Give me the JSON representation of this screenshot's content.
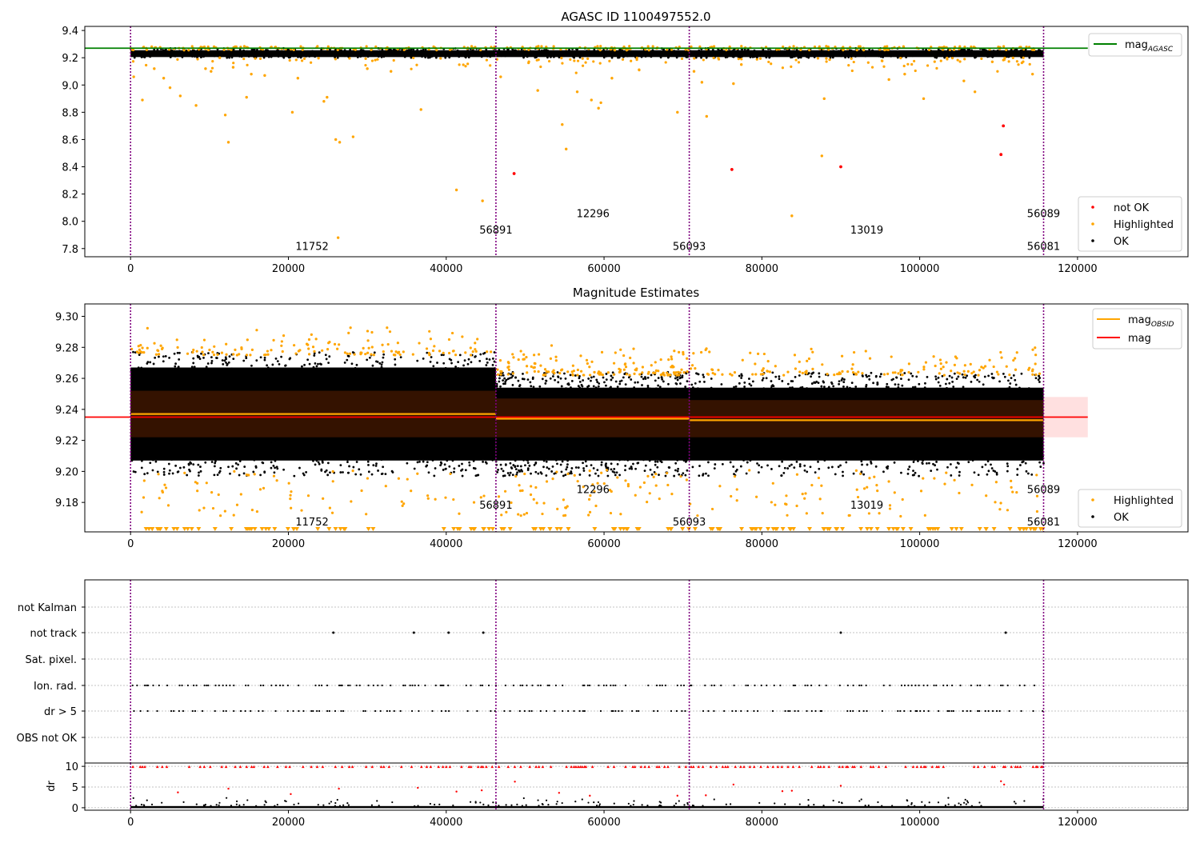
{
  "chart_data": [
    {
      "type": "scatter",
      "title": "AGASC ID 1100497552.0",
      "xlim": [
        -5800,
        134000
      ],
      "ylim": [
        7.74,
        9.43
      ],
      "xticks": [
        0,
        20000,
        40000,
        60000,
        80000,
        100000,
        120000
      ],
      "xtick_labels": [
        "0",
        "20000",
        "40000",
        "60000",
        "80000",
        "100000",
        "120000"
      ],
      "yticks": [
        7.8,
        8.0,
        8.2,
        8.4,
        8.6,
        8.8,
        9.0,
        9.2,
        9.4
      ],
      "ytick_labels": [
        "7.8",
        "8.0",
        "8.2",
        "8.4",
        "8.6",
        "8.8",
        "9.0",
        "9.2",
        "9.4"
      ],
      "obs_boundaries": [
        0,
        46300,
        70800,
        115700
      ],
      "reference_line": {
        "label_main": "mag",
        "label_sub": "AGASC",
        "y": 9.27,
        "color": "#008000"
      },
      "annotations": [
        {
          "text": "11752",
          "x": 23000,
          "y": 7.79
        },
        {
          "text": "56891",
          "x": 46300,
          "y": 7.91
        },
        {
          "text": "12296",
          "x": 58600,
          "y": 8.03
        },
        {
          "text": "56093",
          "x": 70800,
          "y": 7.79
        },
        {
          "text": "13019",
          "x": 93300,
          "y": 7.91
        },
        {
          "text": "56089",
          "x": 115700,
          "y": 8.03
        },
        {
          "text": "56081",
          "x": 115700,
          "y": 7.79
        }
      ],
      "legend_top": {
        "position": "upper right",
        "entries": [
          {
            "label_main": "mag",
            "label_sub": "AGASC",
            "color": "#008000"
          }
        ]
      },
      "legend_bottom": {
        "position": "lower right",
        "entries": [
          {
            "label": "not OK",
            "color": "#ff0000"
          },
          {
            "label": "Highlighted",
            "color": "#ffa500"
          },
          {
            "label": "OK",
            "color": "#000000"
          }
        ]
      },
      "series": [
        {
          "name": "OK",
          "color": "#000000",
          "band": [
            9.2,
            9.26
          ]
        },
        {
          "name": "Highlighted",
          "color": "#ffa500",
          "points": [
            [
              400,
              9.06
            ],
            [
              1500,
              8.89
            ],
            [
              3000,
              9.12
            ],
            [
              4200,
              9.05
            ],
            [
              5000,
              8.98
            ],
            [
              6300,
              8.92
            ],
            [
              8300,
              8.85
            ],
            [
              9500,
              9.12
            ],
            [
              10200,
              9.1
            ],
            [
              11300,
              9.2
            ],
            [
              12000,
              8.78
            ],
            [
              12400,
              8.58
            ],
            [
              13000,
              9.13
            ],
            [
              14700,
              8.91
            ],
            [
              15300,
              9.08
            ],
            [
              17000,
              9.07
            ],
            [
              20500,
              8.8
            ],
            [
              21200,
              9.05
            ],
            [
              24500,
              8.88
            ],
            [
              24900,
              8.91
            ],
            [
              26000,
              8.6
            ],
            [
              26500,
              8.58
            ],
            [
              26300,
              7.88
            ],
            [
              28200,
              8.62
            ],
            [
              30000,
              9.12
            ],
            [
              33000,
              9.1
            ],
            [
              36800,
              8.82
            ],
            [
              41300,
              8.23
            ],
            [
              44600,
              8.15
            ],
            [
              46900,
              9.06
            ],
            [
              51600,
              8.96
            ],
            [
              54700,
              8.71
            ],
            [
              55200,
              8.53
            ],
            [
              56600,
              8.95
            ],
            [
              58400,
              8.89
            ],
            [
              59300,
              8.83
            ],
            [
              59600,
              8.87
            ],
            [
              61000,
              9.05
            ],
            [
              69300,
              8.8
            ],
            [
              71400,
              9.1
            ],
            [
              72400,
              9.02
            ],
            [
              73000,
              8.77
            ],
            [
              76400,
              9.01
            ],
            [
              77400,
              9.15
            ],
            [
              83800,
              8.04
            ],
            [
              87900,
              8.9
            ],
            [
              87600,
              8.48
            ],
            [
              96100,
              9.04
            ],
            [
              98100,
              9.08
            ],
            [
              100500,
              8.9
            ],
            [
              105600,
              9.03
            ],
            [
              107000,
              8.95
            ],
            [
              109200,
              9.17
            ],
            [
              114300,
              9.08
            ]
          ]
        },
        {
          "name": "not OK",
          "color": "#ff0000",
          "points": [
            [
              48600,
              8.35
            ],
            [
              76200,
              8.38
            ],
            [
              90000,
              8.4
            ],
            [
              110300,
              8.49
            ],
            [
              110600,
              8.7
            ]
          ]
        }
      ]
    },
    {
      "type": "scatter",
      "title": "Magnitude Estimates",
      "xlim": [
        -5800,
        134000
      ],
      "ylim": [
        9.161,
        9.308
      ],
      "xticks": [
        0,
        20000,
        40000,
        60000,
        80000,
        100000,
        120000
      ],
      "xtick_labels": [
        "0",
        "20000",
        "40000",
        "60000",
        "80000",
        "100000",
        "120000"
      ],
      "yticks": [
        9.18,
        9.2,
        9.22,
        9.24,
        9.26,
        9.28,
        9.3
      ],
      "ytick_labels": [
        "9.18",
        "9.20",
        "9.22",
        "9.24",
        "9.26",
        "9.28",
        "9.30"
      ],
      "obs_boundaries": [
        0,
        46300,
        70800,
        115700
      ],
      "mag_line": {
        "label": "mag",
        "y": 9.235,
        "band": [
          9.222,
          9.248
        ],
        "color": "#ff0000"
      },
      "obsid_mags": [
        {
          "x0": 0,
          "x1": 46300,
          "y": 9.237,
          "band": [
            9.222,
            9.252
          ]
        },
        {
          "x0": 46300,
          "x1": 70800,
          "y": 9.234,
          "band": [
            9.222,
            9.247
          ]
        },
        {
          "x0": 70800,
          "x1": 115700,
          "y": 9.233,
          "band": [
            9.222,
            9.246
          ]
        }
      ],
      "annotations": [
        {
          "text": "11752",
          "x": 23000,
          "y": 9.165
        },
        {
          "text": "56891",
          "x": 46300,
          "y": 9.176
        },
        {
          "text": "12296",
          "x": 58600,
          "y": 9.186
        },
        {
          "text": "56093",
          "x": 70800,
          "y": 9.165
        },
        {
          "text": "13019",
          "x": 93300,
          "y": 9.176
        },
        {
          "text": "56089",
          "x": 115700,
          "y": 9.186
        },
        {
          "text": "56081",
          "x": 115700,
          "y": 9.165
        }
      ],
      "legend_top": {
        "position": "upper right",
        "entries": [
          {
            "label_main": "mag",
            "label_sub": "OBSID",
            "color": "#ffa500"
          },
          {
            "label_main": "mag",
            "label_sub": "",
            "color": "#ff0000"
          }
        ]
      },
      "legend_bottom": {
        "position": "lower right",
        "entries": [
          {
            "label": "Highlighted",
            "color": "#ffa500"
          },
          {
            "label": "OK",
            "color": "#000000"
          }
        ]
      },
      "series": [
        {
          "name": "OK",
          "color": "#000000"
        },
        {
          "name": "Highlighted",
          "color": "#ffa500"
        }
      ]
    },
    {
      "type": "scatter",
      "title": "",
      "xlim": [
        -5800,
        134000
      ],
      "category_labels": [
        "not Kalman",
        "not track",
        "Sat. pixel.",
        "Ion. rad.",
        "dr > 5",
        "OBS not OK"
      ],
      "obs_boundaries": [
        0,
        46300,
        70800,
        115700
      ],
      "not_track_x": [
        25700,
        35900,
        40300,
        44700,
        90000,
        110900
      ]
    },
    {
      "type": "scatter",
      "title": "",
      "ylabel": "dr",
      "xlim": [
        -5800,
        134000
      ],
      "ylim": [
        -0.6,
        10.8
      ],
      "yticks": [
        0,
        5,
        10
      ],
      "ytick_labels": [
        "0",
        "5",
        "10"
      ],
      "xticks": [
        0,
        20000,
        40000,
        60000,
        80000,
        100000,
        120000
      ],
      "xtick_labels": [
        "0",
        "20000",
        "40000",
        "60000",
        "80000",
        "100000",
        "120000"
      ],
      "obs_boundaries": [
        0,
        46300,
        70800,
        115700
      ],
      "outliers": [
        [
          48700,
          6.3
        ],
        [
          76400,
          5.6
        ],
        [
          90000,
          5.3
        ],
        [
          110300,
          6.4
        ],
        [
          110700,
          5.6
        ],
        [
          26400,
          4.6
        ],
        [
          36400,
          4.8
        ],
        [
          12400,
          4.6
        ],
        [
          6000,
          3.7
        ],
        [
          20300,
          3.3
        ],
        [
          44500,
          4.2
        ],
        [
          54300,
          3.6
        ],
        [
          41300,
          3.9
        ],
        [
          82600,
          4.0
        ],
        [
          83800,
          4.1
        ],
        [
          58200,
          2.9
        ],
        [
          69300,
          2.9
        ],
        [
          72900,
          3.0
        ]
      ]
    }
  ]
}
